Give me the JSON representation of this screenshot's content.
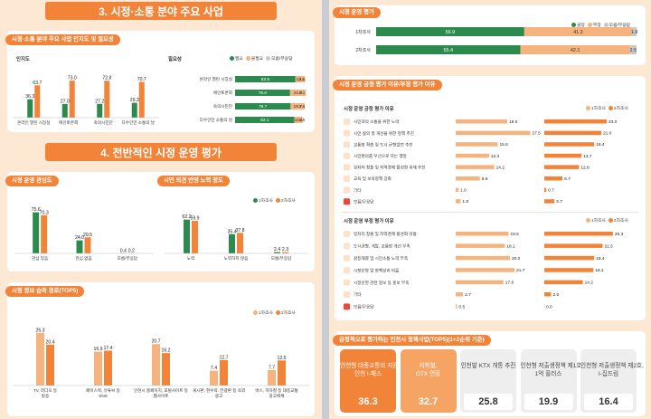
{
  "colors": {
    "green": "#2d8a4e",
    "orange": "#f2843a",
    "light": "#f5b37f",
    "grey": "#c8c8c8",
    "bg": "#fde8d4",
    "highlight": "#fde1c8"
  },
  "section3": {
    "title": "3. 시정·소통 분야 주요 사업"
  },
  "section4": {
    "title": "4. 전반적인 시정 운영 평가"
  },
  "recognition_panel": {
    "title": "시정·소통 분야 주요 사업 인지도 및 필요성",
    "left_label": "인지도",
    "right_label": "필요성",
    "legend": [
      "필요",
      "불필요",
      "모름/무응답"
    ]
  },
  "interest_panel": {
    "title": "시정 운영 관심도",
    "legend": [
      "1차조사",
      "2차조사"
    ]
  },
  "reflect_panel": {
    "title": "시민 의견 반영 노력 정도"
  },
  "info_panel": {
    "title": "시정 정보 습득 경로(TOP5)",
    "legend": [
      "1차조사",
      "2차조사"
    ]
  },
  "eval_panel": {
    "title": "시정 운영 평가",
    "legend": [
      "긍정",
      "부정",
      "모름/무응답"
    ]
  },
  "reason_panel": {
    "title": "시정 운영 긍정 평가 이유/부정 평가 이유",
    "pos_title": "시정 운영 긍정 평가 이유",
    "neg_title": "시정 운영 부정 평가 이유",
    "legend": [
      "1차조사",
      "2차조사"
    ]
  },
  "top5_panel": {
    "title": "긍정적으로 평가하는 인천시 정책사업(TOP5)(1+2순위 기준)"
  },
  "chart_data": [
    {
      "id": "recognition",
      "type": "bar",
      "title": "인지도",
      "categories": [
        "온라인 열린 시장실",
        "애인토론회",
        "숙의시민단",
        "다수인민 소통의 날"
      ],
      "series": [
        {
          "values": [
            36.3,
            27.0,
            27.2,
            29.3
          ]
        },
        {
          "values": [
            63.7,
            73.0,
            72.8,
            70.7
          ]
        }
      ]
    },
    {
      "id": "necessity",
      "type": "bar",
      "title": "필요성",
      "categories": [
        "온라인 열린 시장실",
        "애인토론회",
        "숙의시민단",
        "다수인민 소통의 날"
      ],
      "series": [
        {
          "name": "필요",
          "values": [
            83.5,
            76.0,
            76.7,
            82.1
          ]
        },
        {
          "name": "불필요",
          "values": [
            13.4,
            21.9,
            19.7,
            11.4
          ]
        },
        {
          "name": "모름/무응답",
          "values": [
            3.1,
            2.1,
            3.6,
            6.5
          ]
        }
      ]
    },
    {
      "id": "interest",
      "type": "bar",
      "title": "시정 운영 관심도",
      "categories": [
        "관심 있음",
        "관심 없음",
        "모름/무응답"
      ],
      "series": [
        {
          "name": "1차조사",
          "values": [
            75.6,
            24.0,
            0.4
          ]
        },
        {
          "name": "2차조사",
          "values": [
            70.3,
            29.5,
            0.2
          ]
        }
      ]
    },
    {
      "id": "reflect",
      "type": "bar",
      "title": "시민 의견 반영 노력 정도",
      "categories": [
        "노력",
        "노력하지 않음",
        "모름/무응답"
      ],
      "series": [
        {
          "name": "1차조사",
          "values": [
            62.2,
            35.4,
            2.4
          ]
        },
        {
          "name": "2차조사",
          "values": [
            59.9,
            37.8,
            2.3
          ]
        }
      ]
    },
    {
      "id": "info_source",
      "type": "bar",
      "title": "시정 정보 습득 경로(TOP5)",
      "categories": [
        "TV, 라디오 등 방송",
        "페이스북, 유튜브 등 SNS",
        "인천시 홈페이지, 포털사이트 등 웹사이트",
        "게시판, 현수막, 전광판 등 옥외 광고",
        "버스, 지하철 등 대중교통 광고매체"
      ],
      "series": [
        {
          "name": "1차조사",
          "values": [
            26.3,
            16.9,
            20.7,
            7.4,
            7.7
          ]
        },
        {
          "name": "2차조사",
          "values": [
            20.4,
            17.4,
            16.2,
            12.7,
            12.5
          ]
        }
      ]
    },
    {
      "id": "evaluation",
      "type": "bar",
      "title": "시정 운영 평가",
      "categories": [
        "1차조사",
        "2차조사"
      ],
      "series": [
        {
          "name": "긍정",
          "values": [
            56.9,
            55.4
          ]
        },
        {
          "name": "부정",
          "values": [
            41.3,
            42.1
          ]
        },
        {
          "name": "모름/무응답",
          "values": [
            1.9,
            2.5
          ]
        }
      ]
    },
    {
      "id": "positive_reasons",
      "type": "bar",
      "title": "시정 운영 긍정 평가 이유",
      "categories": [
        "시민과의 소통을 위한 노력",
        "시민 삶의 질 개선을 위한 정책 추진",
        "교통망 확충 및 도시 균형발전 추진",
        "시민편의를 우선으로 하는 행정",
        "일자리 창출 및 지역경제 활성화 위해 추진",
        "교육 및 보육정책 강화",
        "기타",
        "모름/무응답"
      ],
      "series": [
        {
          "name": "1차조사",
          "values": [
            19.0,
            27.5,
            15.5,
            12.3,
            14.2,
            8.9,
            1.0,
            1.8
          ]
        },
        {
          "name": "2차조사",
          "values": [
            23.0,
            21.0,
            18.4,
            13.7,
            12.8,
            6.7,
            0.7,
            3.7
          ]
        }
      ]
    },
    {
      "id": "negative_reasons",
      "type": "bar",
      "title": "시정 운영 부정 평가 이유",
      "categories": [
        "일자리 창출 및 지역경제 활성화 미흡",
        "도시균형, 개발, 교통망 개선 부족",
        "갈등해결 및 시민소통 노력 부족",
        "시정운영 및 정책성과 미흡",
        "시정운영 관련 정보 등 홍보 부족",
        "기타",
        "모름/무응답"
      ],
      "series": [
        {
          "name": "1차조사",
          "values": [
            19.5,
            18.1,
            20.0,
            21.7,
            17.6,
            2.7,
            0.5
          ]
        },
        {
          "name": "2차조사",
          "values": [
            25.3,
            21.5,
            18.4,
            18.1,
            14.2,
            2.5,
            0.0
          ]
        }
      ]
    },
    {
      "id": "top5_policies",
      "type": "table",
      "title": "긍정적으로 평가하는 인천시 정책사업(TOP5)(1+2순위 기준)",
      "items": [
        {
          "label": "인천형 대중교통비 지원,인천 I-패스",
          "value": 36.3
        },
        {
          "label": "지하철, GTX 연장",
          "value": 32.7
        },
        {
          "label": "인천발 KTX 개통 추진",
          "value": 25.8
        },
        {
          "label": "인천형 저출생정책 제1호, 1억 플러스",
          "value": 19.9
        },
        {
          "label": "인천형 저출생정책 제2호, I-집드림",
          "value": 16.4
        }
      ]
    }
  ]
}
